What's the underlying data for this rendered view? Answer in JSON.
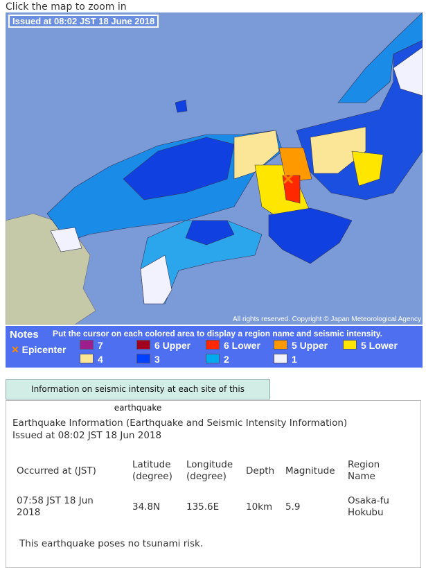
{
  "header": {
    "instruction": "Click the map to zoom in"
  },
  "map": {
    "issued": "Issued at 08:02 JST  18 June 2018",
    "copyright": "All rights reserved. Copyright © Japan Meteorological Agency"
  },
  "notes": {
    "title": "Notes",
    "instruction": "Put the cursor on each colored area to display a region name and seismic intensity.",
    "epicenter": "Epicenter",
    "legend": [
      {
        "label": "7",
        "color": "#9c1f8c"
      },
      {
        "label": "6 Upper",
        "color": "#a0001e"
      },
      {
        "label": "6 Lower",
        "color": "#ff2800"
      },
      {
        "label": "5 Upper",
        "color": "#ff9900"
      },
      {
        "label": "5 Lower",
        "color": "#ffe600"
      },
      {
        "label": "4",
        "color": "#fae696"
      },
      {
        "label": "3",
        "color": "#0041ff"
      },
      {
        "label": "2",
        "color": "#00aaee"
      },
      {
        "label": "1",
        "color": "#f2f2ff"
      }
    ]
  },
  "button": "Information on seismic intensity at each site of this earthquake",
  "info": {
    "title": "Earthquake Information (Earthquake and Seismic Intensity Information)",
    "issued": "Issued at 08:02 JST 18 Jun 2018",
    "table": {
      "headers": [
        "Occurred at (JST)",
        "Latitude (degree)",
        "Longitude (degree)",
        "Depth",
        "Magnitude",
        "Region Name"
      ],
      "rows": [
        [
          "07:58 JST 18 Jun 2018",
          "34.8N",
          "135.6E",
          "10km",
          "5.9",
          "Osaka-fu Hokubu"
        ]
      ]
    },
    "note": "This earthquake poses no tsunami risk."
  }
}
